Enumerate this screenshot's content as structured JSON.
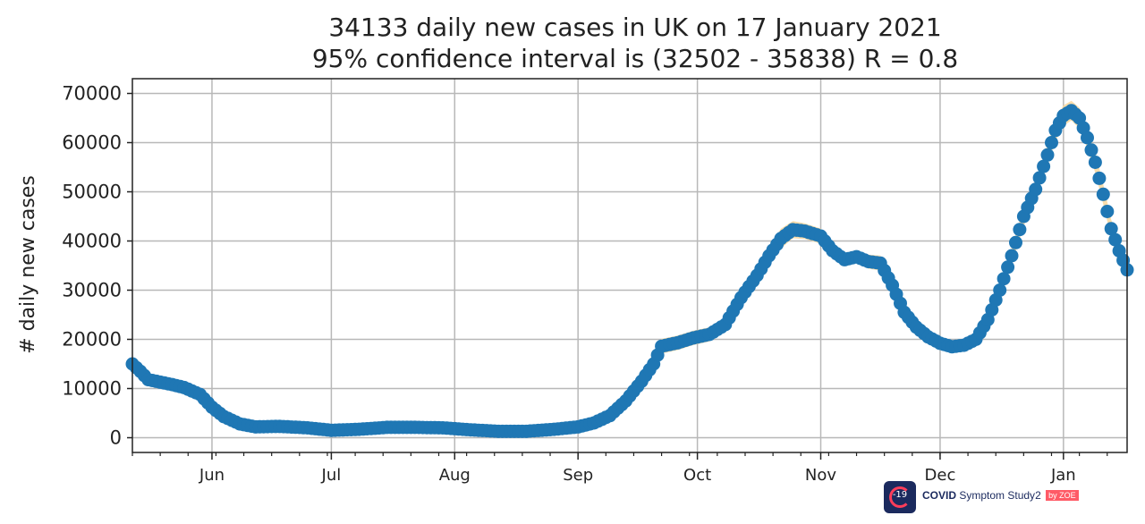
{
  "chart_data": {
    "type": "scatter",
    "title": "34133 daily new cases in UK on 17 January 2021",
    "subtitle": "95% confidence interval is (32502 - 35838) R = 0.8",
    "xlabel": "",
    "ylabel": "# daily new cases",
    "x_start_date": "2020-05-12",
    "x_range": [
      "2020-05-12",
      "2021-01-17"
    ],
    "ylim": [
      -3000,
      73000
    ],
    "grid": true,
    "x_ticks": [
      {
        "date": "2020-06-01",
        "label": "Jun"
      },
      {
        "date": "2020-07-01",
        "label": "Jul"
      },
      {
        "date": "2020-08-01",
        "label": "Aug"
      },
      {
        "date": "2020-09-01",
        "label": "Sep"
      },
      {
        "date": "2020-10-01",
        "label": "Oct"
      },
      {
        "date": "2020-11-01",
        "label": "Nov"
      },
      {
        "date": "2020-12-01",
        "label": "Dec"
      },
      {
        "date": "2021-01-01",
        "label": "Jan"
      }
    ],
    "y_ticks": [
      0,
      10000,
      20000,
      30000,
      40000,
      50000,
      60000,
      70000
    ],
    "y_tick_labels": [
      "0",
      "10000",
      "20000",
      "30000",
      "40000",
      "50000",
      "60000",
      "70000"
    ],
    "series": [
      {
        "values": [
          {
            "x": "2020-05-12",
            "y": 15000
          },
          {
            "x": "2020-05-14",
            "y": 13500
          },
          {
            "x": "2020-05-16",
            "y": 11800
          },
          {
            "x": "2020-05-19",
            "y": 11300
          },
          {
            "x": "2020-05-22",
            "y": 10800
          },
          {
            "x": "2020-05-25",
            "y": 10200
          },
          {
            "x": "2020-05-29",
            "y": 8800
          },
          {
            "x": "2020-06-01",
            "y": 6200
          },
          {
            "x": "2020-06-04",
            "y": 4300
          },
          {
            "x": "2020-06-08",
            "y": 2800
          },
          {
            "x": "2020-06-12",
            "y": 2200
          },
          {
            "x": "2020-06-18",
            "y": 2300
          },
          {
            "x": "2020-06-25",
            "y": 2000
          },
          {
            "x": "2020-07-01",
            "y": 1500
          },
          {
            "x": "2020-07-08",
            "y": 1700
          },
          {
            "x": "2020-07-15",
            "y": 2100
          },
          {
            "x": "2020-07-22",
            "y": 2100
          },
          {
            "x": "2020-07-29",
            "y": 2000
          },
          {
            "x": "2020-08-05",
            "y": 1600
          },
          {
            "x": "2020-08-12",
            "y": 1300
          },
          {
            "x": "2020-08-19",
            "y": 1300
          },
          {
            "x": "2020-08-26",
            "y": 1700
          },
          {
            "x": "2020-09-01",
            "y": 2200
          },
          {
            "x": "2020-09-05",
            "y": 3000
          },
          {
            "x": "2020-09-09",
            "y": 4500
          },
          {
            "x": "2020-09-13",
            "y": 7500
          },
          {
            "x": "2020-09-17",
            "y": 11500
          },
          {
            "x": "2020-09-20",
            "y": 15000
          },
          {
            "x": "2020-09-22",
            "y": 18600
          },
          {
            "x": "2020-09-26",
            "y": 19300
          },
          {
            "x": "2020-09-30",
            "y": 20300
          },
          {
            "x": "2020-10-04",
            "y": 21000
          },
          {
            "x": "2020-10-08",
            "y": 23000
          },
          {
            "x": "2020-10-12",
            "y": 28500
          },
          {
            "x": "2020-10-16",
            "y": 33000
          },
          {
            "x": "2020-10-19",
            "y": 37000
          },
          {
            "x": "2020-10-22",
            "y": 40500
          },
          {
            "x": "2020-10-25",
            "y": 42300
          },
          {
            "x": "2020-10-28",
            "y": 42000
          },
          {
            "x": "2020-11-01",
            "y": 41000
          },
          {
            "x": "2020-11-04",
            "y": 38000
          },
          {
            "x": "2020-11-07",
            "y": 36200
          },
          {
            "x": "2020-11-10",
            "y": 36800
          },
          {
            "x": "2020-11-13",
            "y": 35800
          },
          {
            "x": "2020-11-16",
            "y": 35500
          },
          {
            "x": "2020-11-19",
            "y": 31000
          },
          {
            "x": "2020-11-22",
            "y": 25500
          },
          {
            "x": "2020-11-25",
            "y": 22500
          },
          {
            "x": "2020-11-28",
            "y": 20500
          },
          {
            "x": "2020-12-01",
            "y": 19200
          },
          {
            "x": "2020-12-04",
            "y": 18500
          },
          {
            "x": "2020-12-07",
            "y": 18800
          },
          {
            "x": "2020-12-10",
            "y": 20000
          },
          {
            "x": "2020-12-13",
            "y": 24000
          },
          {
            "x": "2020-12-16",
            "y": 30000
          },
          {
            "x": "2020-12-19",
            "y": 37000
          },
          {
            "x": "2020-12-22",
            "y": 45000
          },
          {
            "x": "2020-12-25",
            "y": 50500
          },
          {
            "x": "2020-12-28",
            "y": 57500
          },
          {
            "x": "2020-12-30",
            "y": 62500
          },
          {
            "x": "2021-01-01",
            "y": 65500
          },
          {
            "x": "2021-01-03",
            "y": 66500
          },
          {
            "x": "2021-01-05",
            "y": 65000
          },
          {
            "x": "2021-01-07",
            "y": 61000
          },
          {
            "x": "2021-01-09",
            "y": 56000
          },
          {
            "x": "2021-01-11",
            "y": 49500
          },
          {
            "x": "2021-01-13",
            "y": 42500
          },
          {
            "x": "2021-01-15",
            "y": 38000
          },
          {
            "x": "2021-01-17",
            "y": 34133
          }
        ]
      }
    ],
    "confidence_band": {
      "color": "#f8d9a3",
      "points": [
        {
          "x": "2020-09-22",
          "lo": 18000,
          "hi": 21000
        },
        {
          "x": "2020-10-22",
          "lo": 39500,
          "hi": 43500
        },
        {
          "x": "2020-10-25",
          "lo": 41000,
          "hi": 44500
        },
        {
          "x": "2020-10-28",
          "lo": 40800,
          "hi": 44000
        },
        {
          "x": "2020-11-10",
          "lo": 35500,
          "hi": 38200
        },
        {
          "x": "2020-12-04",
          "lo": 17500,
          "hi": 19800
        },
        {
          "x": "2021-01-03",
          "lo": 65000,
          "hi": 68500
        },
        {
          "x": "2021-01-17",
          "lo": 32502,
          "hi": 35838
        }
      ]
    },
    "marker_color": "#1f77b4"
  },
  "logo": {
    "brand": "COVID",
    "text": "Symptom Study",
    "suffix": "2",
    "by": "by ZOE",
    "badge": "-19"
  }
}
